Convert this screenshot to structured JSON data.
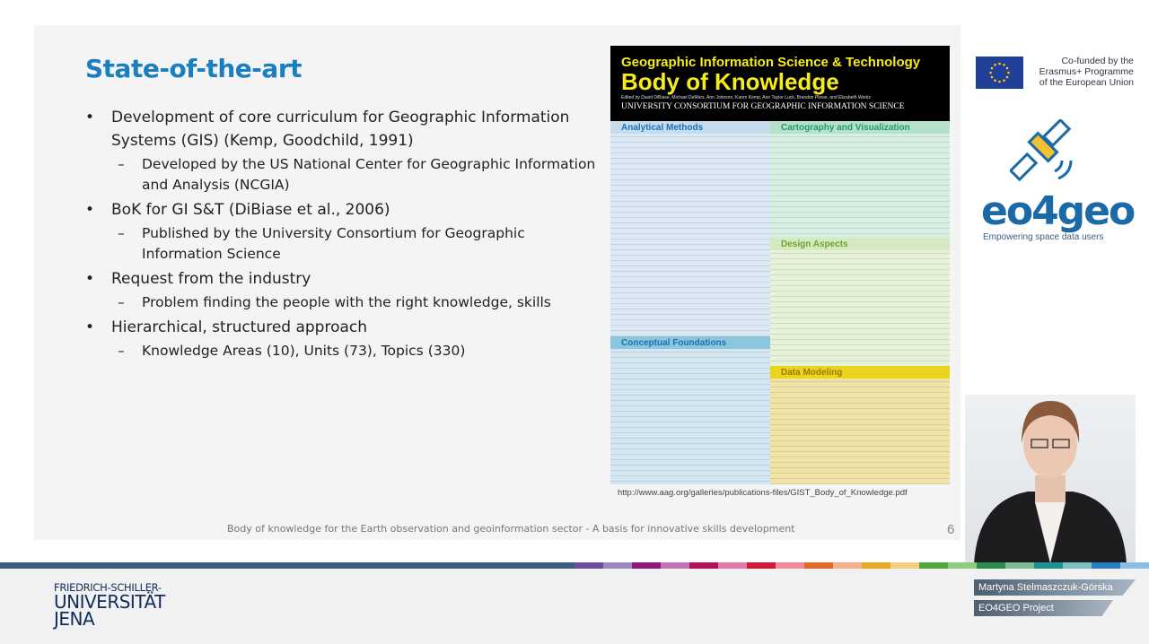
{
  "slide": {
    "title": "State-of-the-art",
    "bullets": [
      {
        "text": "Development of core curriculum for Geographic Information Systems (GIS) (Kemp, Goodchild, 1991)",
        "sub": [
          "Developed by the US National Center for Geographic Information and Analysis (NCGIA)"
        ]
      },
      {
        "text": "BoK for GI S&T (DiBiase et al., 2006)",
        "sub": [
          "Published by the University Consortium for Geographic Information Science"
        ]
      },
      {
        "text": "Request from the industry",
        "sub": [
          "Problem finding the people with the right knowledge, skills"
        ]
      },
      {
        "text": "Hierarchical, structured approach",
        "sub": [
          "Knowledge Areas (10), Units (73), Topics (330)"
        ]
      }
    ],
    "footer": "Body of knowledge for the Earth observation and geoinformation sector - A basis for innovative skills development",
    "page_number": "6"
  },
  "poster": {
    "title1": "Geographic Information Science & Technology",
    "title2": "Body of Knowledge",
    "editors": "Edited by David DiBiase, Michael DeMers, Ann Johnson, Karen Kemp, Ann Taylor Luck, Brandon Plewe, and Elizabeth Wentz",
    "consortium": "UNIVERSITY CONSORTIUM FOR GEOGRAPHIC INFORMATION SCIENCE",
    "sections": [
      "Analytical Methods",
      "Cartography and Visualization",
      "Design Aspects",
      "Conceptual Foundations",
      "Data Modeling"
    ],
    "url": "http://www.aag.org/galleries/publications-files/GIST_Body_of_Knowledge.pdf"
  },
  "logos": {
    "eu_text": [
      "Co-funded by the",
      "Erasmus+ Programme",
      "of the European Union"
    ],
    "eo4geo": "eo4geo",
    "eo4geo_tagline": "Empowering space data users",
    "university": [
      "FRIEDRICH-SCHILLER-",
      "UNIVERSITÄT",
      "JENA"
    ]
  },
  "presenter": {
    "name": "Martyna Stelmaszczuk-Górska",
    "project": "EO4GEO Project"
  },
  "colors": {
    "title": "#1a7fc1",
    "stripe": [
      "#6b4e9b",
      "#9d86c2",
      "#8b1a7a",
      "#c471b5",
      "#b0105e",
      "#e07aa8",
      "#d0183c",
      "#ee8b94",
      "#e06a2a",
      "#f3b08a",
      "#e7a823",
      "#f2cf7e",
      "#4fa83c",
      "#93cb7e",
      "#2a8c4f",
      "#7dbb93",
      "#1f8f93",
      "#7dc2c3",
      "#2a7fc1",
      "#8abde3"
    ]
  }
}
